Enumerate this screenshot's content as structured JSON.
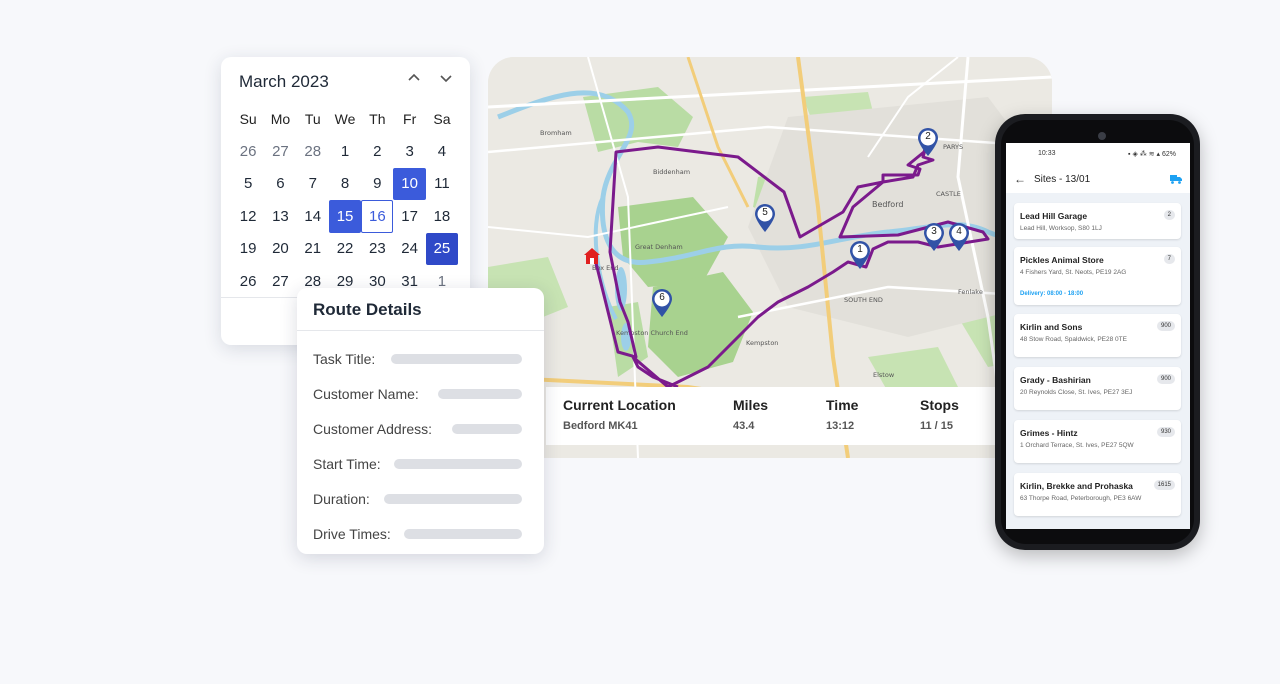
{
  "calendar": {
    "title": "March 2023",
    "weekdays": [
      "Su",
      "Mo",
      "Tu",
      "We",
      "Th",
      "Fr",
      "Sa"
    ],
    "weeks": [
      [
        "26",
        "27",
        "28",
        "1",
        "2",
        "3",
        "4"
      ],
      [
        "5",
        "6",
        "7",
        "8",
        "9",
        "10",
        "11"
      ],
      [
        "12",
        "13",
        "14",
        "15",
        "16",
        "17",
        "18"
      ],
      [
        "19",
        "20",
        "21",
        "22",
        "23",
        "24",
        "25"
      ],
      [
        "26",
        "27",
        "28",
        "29",
        "30",
        "31",
        "1"
      ]
    ],
    "selected_days": [
      "10",
      "15",
      "25"
    ],
    "outlined_day": "16",
    "accent_color": "#3b5bdb"
  },
  "route_details": {
    "title": "Route Details",
    "fields": [
      "Task Title:",
      "Customer Name:",
      "Customer Address:",
      "Start Time:",
      "Duration:",
      "Drive Times:"
    ]
  },
  "map": {
    "route_color": "#7b1a8c",
    "stops": [
      "1",
      "2",
      "3",
      "4",
      "5",
      "6"
    ],
    "place_labels": [
      "Bromham",
      "Biddenham",
      "Bedford",
      "Great Denham",
      "Kempston",
      "Kempston Church End",
      "Elstow",
      "Box End",
      "PARYS",
      "CASTLE",
      "SOUTH END",
      "Fenlake"
    ],
    "stats": {
      "location_label": "Current Location",
      "location_value": "Bedford MK41",
      "miles_label": "Miles",
      "miles_value": "43.4",
      "time_label": "Time",
      "time_value": "13:12",
      "stops_label": "Stops",
      "stops_value": "11 / 15"
    }
  },
  "phone": {
    "status_time": "10:33",
    "status_battery": "62%",
    "title": "Sites - 13/01",
    "sites": [
      {
        "name": "Lead Hill Garage",
        "address": "Lead Hill, Worksop, S80 1LJ",
        "badge": "2",
        "delivery": ""
      },
      {
        "name": "Pickles Animal Store",
        "address": "4 Fishers Yard, St. Neots, PE19 2AG",
        "badge": "7",
        "delivery": "Delivery: 08:00 - 18:00"
      },
      {
        "name": "Kirlin and Sons",
        "address": "48 Stow Road, Spaldwick, PE28 0TE",
        "badge": "900",
        "delivery": ""
      },
      {
        "name": "Grady - Bashirian",
        "address": "20 Reynolds Close, St. Ives, PE27 3EJ",
        "badge": "900",
        "delivery": ""
      },
      {
        "name": "Grimes - Hintz",
        "address": "1 Orchard Terrace, St. Ives, PE27 5QW",
        "badge": "930",
        "delivery": ""
      },
      {
        "name": "Kirlin, Brekke and Prohaska",
        "address": "63 Thorpe Road, Peterborough, PE3 6AW",
        "badge": "1615",
        "delivery": ""
      }
    ],
    "delivery_color": "#1da1f2"
  }
}
